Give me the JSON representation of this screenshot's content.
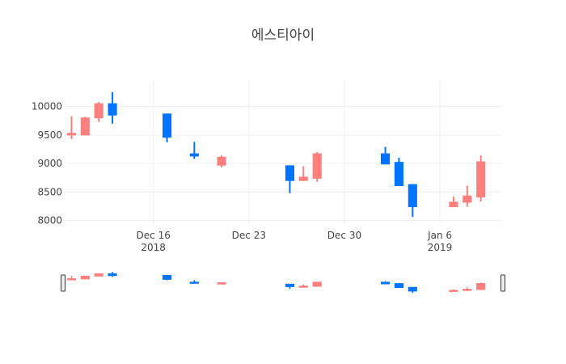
{
  "chart_data": {
    "type": "candlestick",
    "title": "에스티아이",
    "xlabel": "",
    "ylabel": "",
    "ylim": [
      7950,
      10450
    ],
    "x_range": [
      "2018-12-10",
      "2019-01-10"
    ],
    "grid": true,
    "legend": "none",
    "range_slider": true,
    "increasing_color": "#FF7F7F",
    "decreasing_color": "#0074FF",
    "y_ticks": [
      8000,
      8500,
      9000,
      9500,
      10000
    ],
    "y_tick_labels": [
      "8000",
      "8500",
      "9000",
      "9500",
      "10000"
    ],
    "x_ticks": [
      "2018-12-16",
      "2018-12-23",
      "2018-12-30",
      "2019-01-06"
    ],
    "x_tick_labels": [
      {
        "day": "Dec 16",
        "year": "2018"
      },
      {
        "day": "Dec 23",
        "year": ""
      },
      {
        "day": "Dec 30",
        "year": ""
      },
      {
        "day": "Jan 6",
        "year": "2019"
      }
    ],
    "candles": [
      {
        "date": "2018-12-10",
        "open": 9500,
        "high": 9830,
        "low": 9430,
        "close": 9530
      },
      {
        "date": "2018-12-11",
        "open": 9500,
        "high": 9820,
        "low": 9500,
        "close": 9800
      },
      {
        "date": "2018-12-12",
        "open": 9800,
        "high": 10080,
        "low": 9730,
        "close": 10050
      },
      {
        "date": "2018-12-13",
        "open": 10050,
        "high": 10250,
        "low": 9700,
        "close": 9850
      },
      {
        "date": "2018-12-17",
        "open": 9870,
        "high": 9870,
        "low": 9370,
        "close": 9460
      },
      {
        "date": "2018-12-19",
        "open": 9170,
        "high": 9380,
        "low": 9080,
        "close": 9130
      },
      {
        "date": "2018-12-21",
        "open": 8970,
        "high": 9140,
        "low": 8930,
        "close": 9110
      },
      {
        "date": "2018-12-26",
        "open": 8960,
        "high": 8960,
        "low": 8480,
        "close": 8700
      },
      {
        "date": "2018-12-27",
        "open": 8700,
        "high": 8950,
        "low": 8690,
        "close": 8760
      },
      {
        "date": "2018-12-28",
        "open": 8740,
        "high": 9200,
        "low": 8680,
        "close": 9170
      },
      {
        "date": "2019-01-02",
        "open": 9170,
        "high": 9290,
        "low": 8990,
        "close": 8990
      },
      {
        "date": "2019-01-03",
        "open": 9020,
        "high": 9100,
        "low": 8610,
        "close": 8610
      },
      {
        "date": "2019-01-04",
        "open": 8630,
        "high": 8630,
        "low": 8060,
        "close": 8240
      },
      {
        "date": "2019-01-07",
        "open": 8240,
        "high": 8420,
        "low": 8240,
        "close": 8320
      },
      {
        "date": "2019-01-08",
        "open": 8320,
        "high": 8610,
        "low": 8240,
        "close": 8430
      },
      {
        "date": "2019-01-09",
        "open": 8410,
        "high": 9140,
        "low": 8330,
        "close": 9030
      }
    ]
  }
}
